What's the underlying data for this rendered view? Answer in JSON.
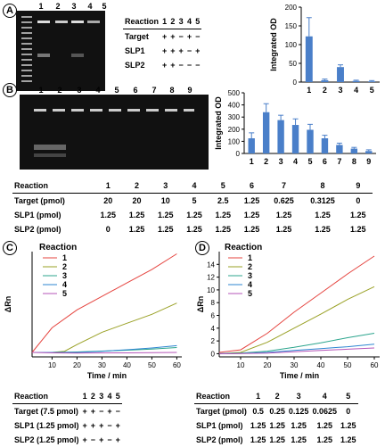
{
  "panels": [
    "A",
    "B",
    "C",
    "D"
  ],
  "panelA": {
    "lane_labels": [
      "1",
      "2",
      "3",
      "4",
      "5"
    ],
    "table": {
      "header": [
        "Reaction",
        "1",
        "2",
        "3",
        "4",
        "5"
      ],
      "rows": [
        {
          "label": "Target",
          "cells": [
            "+",
            "+",
            "−",
            "+",
            "−"
          ]
        },
        {
          "label": "SLP1",
          "cells": [
            "+",
            "+",
            "+",
            "−",
            "+"
          ]
        },
        {
          "label": "SLP2",
          "cells": [
            "+",
            "+",
            "−",
            "−",
            "−"
          ]
        }
      ]
    }
  },
  "panelB": {
    "lane_labels": [
      "1",
      "2",
      "3",
      "4",
      "5",
      "6",
      "7",
      "8",
      "9"
    ],
    "table": {
      "header": [
        "Reaction",
        "1",
        "2",
        "3",
        "4",
        "5",
        "6",
        "7",
        "8",
        "9"
      ],
      "rows": [
        {
          "label": "Target (pmol)",
          "cells": [
            "20",
            "20",
            "10",
            "5",
            "2.5",
            "1.25",
            "0.625",
            "0.3125",
            "0"
          ]
        },
        {
          "label": "SLP1 (pmol)",
          "cells": [
            "1.25",
            "1.25",
            "1.25",
            "1.25",
            "1.25",
            "1.25",
            "1.25",
            "1.25",
            "1.25"
          ]
        },
        {
          "label": "SLP2 (pmol)",
          "cells": [
            "0",
            "1.25",
            "1.25",
            "1.25",
            "1.25",
            "1.25",
            "1.25",
            "1.25",
            "1.25"
          ]
        }
      ]
    }
  },
  "panelC": {
    "table": {
      "header": [
        "Reaction",
        "1",
        "2",
        "3",
        "4",
        "5"
      ],
      "rows": [
        {
          "label": "Target (7.5 pmol)",
          "cells": [
            "+",
            "+",
            "−",
            "+",
            "−"
          ]
        },
        {
          "label": "SLP1 (1.25 pmol)",
          "cells": [
            "+",
            "+",
            "+",
            "−",
            "+"
          ]
        },
        {
          "label": "SLP2 (1.25 pmol)",
          "cells": [
            "+",
            "−",
            "+",
            "−",
            "+"
          ]
        }
      ]
    }
  },
  "panelD": {
    "table": {
      "header": [
        "Reaction",
        "1",
        "2",
        "3",
        "4",
        "5"
      ],
      "rows": [
        {
          "label": "Target (pmol)",
          "cells": [
            "0.5",
            "0.25",
            "0.125",
            "0.0625",
            "0"
          ]
        },
        {
          "label": "SLP1 (pmol)",
          "cells": [
            "1.25",
            "1.25",
            "1.25",
            "1.25",
            "1.25"
          ]
        },
        {
          "label": "SLP2 (pmol)",
          "cells": [
            "1.25",
            "1.25",
            "1.25",
            "1.25",
            "1.25"
          ]
        }
      ]
    }
  },
  "chart_data": [
    {
      "id": "A-bar",
      "type": "bar",
      "categories": [
        "1",
        "2",
        "3",
        "4",
        "5"
      ],
      "values": [
        122,
        5,
        40,
        3,
        2
      ],
      "errors": [
        50,
        3,
        6,
        2,
        2
      ],
      "ylabel": "Integrated OD",
      "ylim": [
        0,
        200
      ],
      "yticks": [
        0,
        50,
        100,
        150,
        200
      ],
      "color": "#4a7fc9"
    },
    {
      "id": "B-bar",
      "type": "bar",
      "categories": [
        "1",
        "2",
        "3",
        "4",
        "5",
        "6",
        "7",
        "8",
        "9"
      ],
      "values": [
        125,
        340,
        275,
        235,
        195,
        125,
        70,
        40,
        20
      ],
      "errors": [
        45,
        70,
        40,
        50,
        45,
        25,
        15,
        10,
        10
      ],
      "ylabel": "Integrated OD",
      "ylim": [
        0,
        500
      ],
      "yticks": [
        0,
        100,
        200,
        300,
        400,
        500
      ],
      "color": "#4a7fc9"
    },
    {
      "id": "C-line",
      "type": "line",
      "title": "Reaction",
      "xlabel": "Time / min",
      "ylabel": "ΔRn",
      "xlim": [
        2,
        62
      ],
      "ylim": [
        -0.2,
        4.5
      ],
      "xticks": [
        10,
        20,
        30,
        40,
        50,
        60
      ],
      "series": [
        {
          "name": "1",
          "color": "#e5443f",
          "x": [
            2,
            10,
            20,
            30,
            40,
            50,
            60
          ],
          "y": [
            0.0,
            1.1,
            1.9,
            2.5,
            3.1,
            3.7,
            4.4
          ]
        },
        {
          "name": "2",
          "color": "#9aa126",
          "x": [
            2,
            10,
            15,
            20,
            30,
            40,
            50,
            60
          ],
          "y": [
            0.0,
            0.0,
            0.05,
            0.35,
            0.9,
            1.3,
            1.7,
            2.2
          ]
        },
        {
          "name": "3",
          "color": "#2ca58d",
          "x": [
            2,
            10,
            20,
            30,
            40,
            50,
            60
          ],
          "y": [
            0.0,
            0.0,
            0.02,
            0.06,
            0.1,
            0.15,
            0.22
          ]
        },
        {
          "name": "4",
          "color": "#2e86d1",
          "x": [
            2,
            10,
            20,
            30,
            40,
            50,
            60
          ],
          "y": [
            0.0,
            0.0,
            0.0,
            0.05,
            0.12,
            0.2,
            0.3
          ]
        },
        {
          "name": "5",
          "color": "#b555b8",
          "x": [
            2,
            10,
            20,
            30,
            40,
            50,
            60
          ],
          "y": [
            0.0,
            -0.02,
            -0.03,
            -0.02,
            -0.02,
            -0.01,
            0.0
          ]
        }
      ]
    },
    {
      "id": "D-line",
      "type": "line",
      "title": "Reaction",
      "xlabel": "Time / min",
      "ylabel": "ΔRn",
      "xlim": [
        2,
        62
      ],
      "ylim": [
        -0.5,
        16
      ],
      "xticks": [
        10,
        20,
        30,
        40,
        50,
        60
      ],
      "yticks": [
        0,
        2,
        4,
        6,
        8,
        10,
        12,
        14
      ],
      "series": [
        {
          "name": "1",
          "color": "#e5443f",
          "x": [
            2,
            10,
            20,
            30,
            40,
            50,
            60
          ],
          "y": [
            0.2,
            0.6,
            3.2,
            6.5,
            9.5,
            12.5,
            15.3
          ]
        },
        {
          "name": "2",
          "color": "#9aa126",
          "x": [
            2,
            10,
            20,
            30,
            40,
            50,
            60
          ],
          "y": [
            0.0,
            0.2,
            1.8,
            4.0,
            6.2,
            8.5,
            10.5
          ]
        },
        {
          "name": "3",
          "color": "#2ca58d",
          "x": [
            2,
            10,
            20,
            30,
            40,
            50,
            60
          ],
          "y": [
            0.0,
            0.1,
            0.4,
            1.0,
            1.7,
            2.5,
            3.2
          ]
        },
        {
          "name": "4",
          "color": "#2e86d1",
          "x": [
            2,
            10,
            20,
            30,
            40,
            50,
            60
          ],
          "y": [
            0.0,
            0.05,
            0.2,
            0.5,
            0.8,
            1.1,
            1.5
          ]
        },
        {
          "name": "5",
          "color": "#b555b8",
          "x": [
            2,
            10,
            20,
            30,
            40,
            50,
            60
          ],
          "y": [
            0.0,
            0.02,
            0.1,
            0.3,
            0.5,
            0.7,
            0.9
          ]
        }
      ]
    }
  ]
}
